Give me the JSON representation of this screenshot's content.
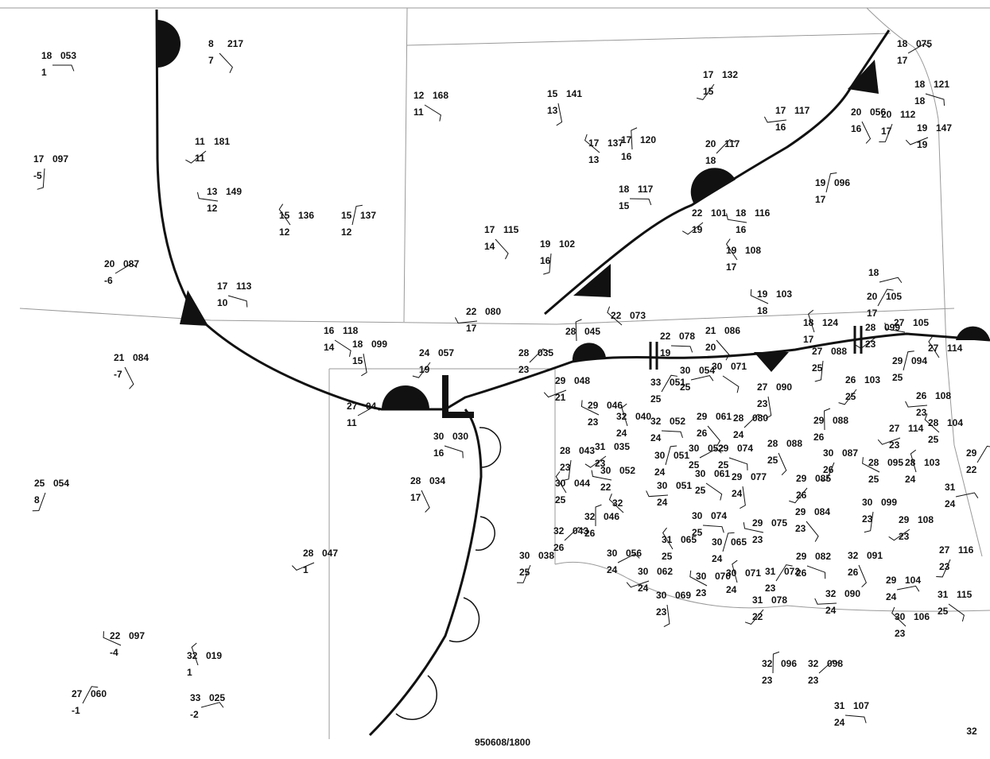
{
  "stations": [
    {
      "t": "18",
      "p": "053",
      "d": "1"
    },
    {
      "t": "8",
      "p": "217",
      "d": "7"
    },
    {
      "t": "17",
      "p": "097",
      "d": "-5"
    },
    {
      "t": "11",
      "p": "181",
      "d": "11"
    },
    {
      "t": "13",
      "p": "149",
      "d": "12"
    },
    {
      "t": "15",
      "p": "136",
      "d": "12"
    },
    {
      "t": "15",
      "p": "137",
      "d": "12"
    },
    {
      "t": "20",
      "p": "087",
      "d": "-6"
    },
    {
      "t": "17",
      "p": "113",
      "d": "10"
    },
    {
      "t": "21",
      "p": "084",
      "d": "-7"
    },
    {
      "t": "25",
      "p": "054",
      "d": "8"
    },
    {
      "t": "28",
      "p": "047",
      "d": "1"
    },
    {
      "t": "22",
      "p": "097",
      "d": "-4"
    },
    {
      "t": "32",
      "p": "019",
      "d": "1"
    },
    {
      "t": "27",
      "p": "060",
      "d": "-1"
    },
    {
      "t": "33",
      "p": "025",
      "d": "-2"
    },
    {
      "t": "12",
      "p": "168",
      "d": "11"
    },
    {
      "t": "15",
      "p": "141",
      "d": "13"
    },
    {
      "t": "17",
      "p": "132",
      "d": "15"
    },
    {
      "t": "17",
      "p": "117",
      "d": "16"
    },
    {
      "t": "17",
      "p": "137",
      "d": "13"
    },
    {
      "t": "17",
      "p": "120",
      "d": "16"
    },
    {
      "t": "20",
      "p": "117",
      "d": "18"
    },
    {
      "t": "18",
      "p": "117",
      "d": "15"
    },
    {
      "t": "17",
      "p": "115",
      "d": "14"
    },
    {
      "t": "19",
      "p": "102",
      "d": "16"
    },
    {
      "t": "22",
      "p": "101",
      "d": "19"
    },
    {
      "t": "18",
      "p": "116",
      "d": "16"
    },
    {
      "t": "19",
      "p": "108",
      "d": "17"
    },
    {
      "t": "19",
      "p": "096",
      "d": "17"
    },
    {
      "t": "18",
      "p": "075",
      "d": "17"
    },
    {
      "t": "18",
      "p": "121",
      "d": "18"
    },
    {
      "t": "20",
      "p": "056",
      "d": "16"
    },
    {
      "t": "20",
      "p": "112",
      "d": "17"
    },
    {
      "t": "19",
      "p": "147",
      "d": "19"
    },
    {
      "t": "19",
      "p": "103",
      "d": "18"
    },
    {
      "t": "18",
      "p": "124",
      "d": "17"
    },
    {
      "t": "20",
      "p": "105",
      "d": "17"
    },
    {
      "t": "18"
    },
    {
      "t": "16",
      "p": "118",
      "d": "14"
    },
    {
      "t": "18",
      "p": "099",
      "d": "15"
    },
    {
      "t": "24",
      "p": "057",
      "d": "19"
    },
    {
      "t": "22",
      "p": "080",
      "d": "17"
    },
    {
      "t": "22",
      "p": "073"
    },
    {
      "t": "28",
      "p": "045"
    },
    {
      "t": "28",
      "p": "035",
      "d": "23"
    },
    {
      "t": "22",
      "p": "078",
      "d": "19"
    },
    {
      "t": "21",
      "p": "086",
      "d": "20"
    },
    {
      "t": "27",
      "p": "088",
      "d": "25"
    },
    {
      "t": "28",
      "p": "099",
      "d": "23"
    },
    {
      "t": "27",
      "p": "105"
    },
    {
      "t": "27",
      "p": "114"
    },
    {
      "t": "29",
      "p": "094",
      "d": "25"
    },
    {
      "t": "27",
      "p": "04",
      "d": "11"
    },
    {
      "t": "30",
      "p": "030",
      "d": "16"
    },
    {
      "t": "28",
      "p": "034",
      "d": "17"
    },
    {
      "t": "30",
      "p": "038",
      "d": "25"
    },
    {
      "t": "29",
      "p": "048",
      "d": "21"
    },
    {
      "t": "29",
      "p": "046",
      "d": "23"
    },
    {
      "t": "32",
      "p": "040",
      "d": "24"
    },
    {
      "t": "33",
      "p": "051",
      "d": "25"
    },
    {
      "t": "30",
      "p": "054",
      "d": "25"
    },
    {
      "t": "30",
      "p": "071"
    },
    {
      "t": "27",
      "p": "090",
      "d": "23"
    },
    {
      "t": "26",
      "p": "103",
      "d": "25"
    },
    {
      "t": "26",
      "p": "108",
      "d": "23"
    },
    {
      "t": "28",
      "p": "104",
      "d": "25"
    },
    {
      "t": "29",
      "p": "088",
      "d": "26"
    },
    {
      "t": "28",
      "p": "080",
      "d": "24"
    },
    {
      "t": "32",
      "p": "052",
      "d": "24"
    },
    {
      "t": "29",
      "p": "061",
      "d": "26"
    },
    {
      "t": "28",
      "p": "043",
      "d": "23"
    },
    {
      "t": "31",
      "p": "035",
      "d": "23"
    },
    {
      "t": "30",
      "p": "052",
      "d": "22"
    },
    {
      "t": "30",
      "p": "044",
      "d": "25"
    },
    {
      "t": "30",
      "p": "051",
      "d": "24"
    },
    {
      "t": "30",
      "p": "052",
      "d": "25"
    },
    {
      "t": "29",
      "p": "074",
      "d": "25"
    },
    {
      "t": "28",
      "p": "088",
      "d": "25"
    },
    {
      "t": "30",
      "p": "087",
      "d": "26"
    },
    {
      "t": "27",
      "p": "114",
      "d": "23"
    },
    {
      "t": "28",
      "p": "095",
      "d": "25"
    },
    {
      "t": "28",
      "p": "103",
      "d": "24"
    },
    {
      "t": "29",
      "d": "22"
    },
    {
      "t": "31",
      "d": "24"
    },
    {
      "t": "30",
      "p": "061",
      "d": "25"
    },
    {
      "t": "29",
      "p": "077",
      "d": "24"
    },
    {
      "t": "29",
      "p": "085",
      "d": "26"
    },
    {
      "t": "30",
      "p": "051",
      "d": "24"
    },
    {
      "t": "32"
    },
    {
      "t": "32",
      "p": "046",
      "d": "26"
    },
    {
      "t": "32",
      "p": "043",
      "d": "26"
    },
    {
      "t": "30",
      "p": "074",
      "d": "25"
    },
    {
      "t": "29",
      "p": "084",
      "d": "23"
    },
    {
      "t": "30",
      "p": "099",
      "d": "23"
    },
    {
      "t": "29",
      "p": "108",
      "d": "23"
    },
    {
      "t": "29",
      "p": "075",
      "d": "23"
    },
    {
      "t": "31",
      "p": "065",
      "d": "25"
    },
    {
      "t": "30",
      "p": "065",
      "d": "24"
    },
    {
      "t": "30",
      "p": "056",
      "d": "24"
    },
    {
      "t": "29",
      "p": "082",
      "d": "26"
    },
    {
      "t": "32",
      "p": "091",
      "d": "26"
    },
    {
      "t": "27",
      "p": "116",
      "d": "23"
    },
    {
      "t": "30",
      "p": "062",
      "d": "24"
    },
    {
      "t": "30",
      "p": "070",
      "d": "23"
    },
    {
      "t": "30",
      "p": "071",
      "d": "24"
    },
    {
      "t": "31",
      "p": "072",
      "d": "23"
    },
    {
      "t": "29",
      "p": "104",
      "d": "24"
    },
    {
      "t": "31",
      "p": "115",
      "d": "25"
    },
    {
      "t": "30",
      "p": "069",
      "d": "23"
    },
    {
      "t": "31",
      "p": "078",
      "d": "22"
    },
    {
      "t": "32",
      "p": "090",
      "d": "24"
    },
    {
      "t": "30",
      "p": "106",
      "d": "23"
    },
    {
      "t": "32",
      "p": "096",
      "d": "23"
    },
    {
      "t": "32",
      "p": "098",
      "d": "23"
    },
    {
      "t": "31",
      "p": "107",
      "d": "24"
    }
  ],
  "low": "L",
  "footer": "950608/1800",
  "page_number": "32"
}
